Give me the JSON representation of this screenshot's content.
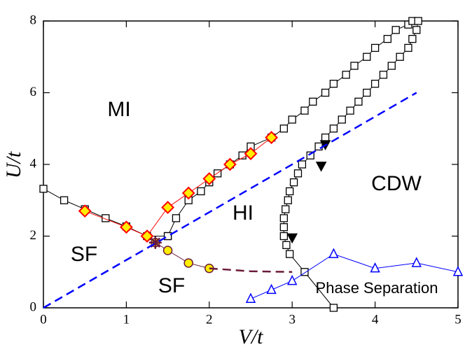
{
  "chart_data": {
    "type": "scatter",
    "xlabel": "V/t",
    "ylabel": "U/t",
    "xlim": [
      0,
      5
    ],
    "ylim": [
      0,
      8
    ],
    "xticks": [
      0,
      1,
      2,
      3,
      4,
      5
    ],
    "yticks": [
      0,
      2,
      4,
      6,
      8
    ],
    "annotations": [
      "MI",
      "SF",
      "SF",
      "HI",
      "CDW",
      "Phase Separation"
    ],
    "series": [
      {
        "color": "#000000",
        "marker": "square",
        "line": "solid",
        "x": [
          0,
          0.25,
          0.5,
          0.75,
          1.0,
          1.25,
          1.5
        ],
        "values": [
          3.32,
          3.0,
          2.75,
          2.5,
          2.27,
          2.0,
          2.0
        ]
      },
      {
        "color": "#000000",
        "marker": "square",
        "line": "solid",
        "x": [
          1.5,
          1.6,
          1.75,
          1.9,
          2.0,
          2.1,
          2.25,
          2.4,
          2.5,
          2.75,
          2.9,
          3.0,
          3.15,
          3.25,
          3.4,
          3.5,
          3.65,
          3.75,
          3.9,
          4.0,
          4.15,
          4.25,
          4.4,
          4.45
        ],
        "values": [
          2.0,
          2.5,
          3.0,
          3.25,
          3.5,
          3.75,
          4.0,
          4.25,
          4.5,
          4.75,
          5.0,
          5.25,
          5.5,
          5.75,
          6.0,
          6.25,
          6.5,
          6.75,
          7.0,
          7.25,
          7.5,
          7.75,
          7.9,
          8.0
        ]
      },
      {
        "color": "#000000",
        "marker": "square",
        "line": "solid",
        "x": [
          3.5,
          3.15,
          2.97,
          2.93,
          2.9,
          2.9,
          2.9,
          2.92,
          2.95,
          2.97,
          3.02,
          3.07,
          3.12,
          3.22,
          3.32,
          3.4,
          3.5,
          3.6,
          3.7,
          3.8,
          3.9,
          4.0,
          4.1,
          4.2,
          4.3,
          4.4,
          4.45,
          4.5,
          4.52
        ],
        "values": [
          0,
          1.0,
          1.5,
          1.75,
          2.0,
          2.25,
          2.5,
          2.75,
          3.0,
          3.25,
          3.5,
          3.75,
          4.0,
          4.25,
          4.5,
          4.75,
          5.0,
          5.25,
          5.5,
          5.75,
          6.0,
          6.25,
          6.5,
          6.75,
          7.0,
          7.25,
          7.5,
          7.75,
          8.0
        ]
      },
      {
        "color": "#ff0000",
        "marker": "diamond",
        "line": "solid",
        "x": [
          0.5,
          1.0,
          1.25,
          1.5,
          1.75,
          2.0,
          2.25,
          2.5,
          2.75
        ],
        "values": [
          2.7,
          2.25,
          2.0,
          2.8,
          3.2,
          3.6,
          4.0,
          4.3,
          4.75
        ]
      },
      {
        "color": "#6b1a3a",
        "marker": "circle",
        "line": "solid",
        "x": [
          1.35,
          1.5,
          1.75,
          2.0
        ],
        "values": [
          1.82,
          1.6,
          1.25,
          1.1
        ]
      },
      {
        "color": "#6b1a3a",
        "marker": "none",
        "line": "dashed",
        "x": [
          2.0,
          2.5,
          3.0
        ],
        "values": [
          1.1,
          1.02,
          1.0
        ]
      },
      {
        "color": "#6b1a3a",
        "marker": "star",
        "line": "none",
        "x": [
          1.35
        ],
        "values": [
          1.82
        ]
      },
      {
        "color": "#0000ff",
        "marker": "triangle-up",
        "line": "solid",
        "x": [
          2.5,
          2.75,
          3.0,
          3.5,
          4.0,
          4.5,
          5.0
        ],
        "values": [
          0.25,
          0.5,
          0.75,
          1.5,
          1.1,
          1.25,
          1.0
        ]
      },
      {
        "color": "#000000",
        "marker": "triangle-down",
        "line": "none",
        "x": [
          3.0,
          3.35,
          3.4
        ],
        "values": [
          1.95,
          3.95,
          4.55
        ]
      },
      {
        "color": "#0000ff",
        "marker": "none",
        "line": "dashed",
        "x": [
          0,
          4.5
        ],
        "values": [
          0,
          6
        ]
      }
    ]
  }
}
